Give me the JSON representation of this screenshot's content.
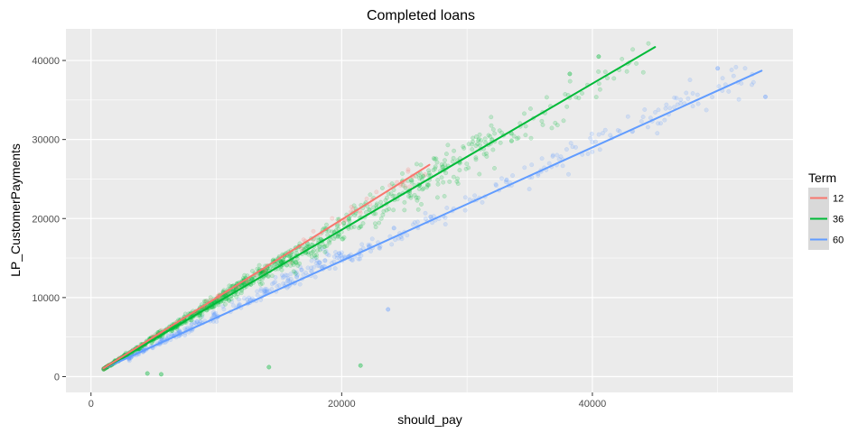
{
  "chart_data": {
    "type": "scatter",
    "title": "Completed loans",
    "xlabel": "should_pay",
    "ylabel": "LP_CustomerPayments",
    "xlim": [
      -2000,
      56000
    ],
    "ylim": [
      -2000,
      44000
    ],
    "x_ticks": [
      0,
      20000,
      40000
    ],
    "y_ticks": [
      0,
      10000,
      20000,
      30000,
      40000
    ],
    "x_tick_labels": [
      "0",
      "20000",
      "40000"
    ],
    "y_tick_labels": [
      "0",
      "10000",
      "20000",
      "30000",
      "40000"
    ],
    "grid": true,
    "panel_background": "#ebebeb",
    "grid_color": "#ffffff",
    "legend": {
      "title": "Term",
      "position": "right",
      "background": "#d9d9d9"
    },
    "series": [
      {
        "name": "12",
        "color": "#f8766d",
        "fit_line": [
          [
            1000,
            1050
          ],
          [
            27000,
            26800
          ]
        ],
        "point_clusters": [
          {
            "x": [
              1000,
              27000
            ],
            "slope": 0.99,
            "spread": 0.05,
            "count": 80
          }
        ]
      },
      {
        "name": "36",
        "color": "#00ba38",
        "fit_line": [
          [
            1000,
            1000
          ],
          [
            45000,
            41700
          ]
        ],
        "point_clusters": [
          {
            "x": [
              1000,
              16000
            ],
            "slope": 0.96,
            "spread": 0.07,
            "count": 700
          },
          {
            "x": [
              16000,
              32000
            ],
            "slope": 0.93,
            "spread": 0.09,
            "count": 300
          },
          {
            "x": [
              32000,
              45000
            ],
            "slope": 0.92,
            "spread": 0.06,
            "count": 60
          }
        ],
        "outliers": [
          [
            5600,
            300
          ],
          [
            14200,
            1200
          ],
          [
            21500,
            1400
          ],
          [
            38200,
            38300
          ],
          [
            40500,
            40500
          ],
          [
            4500,
            400
          ]
        ]
      },
      {
        "name": "60",
        "color": "#619cff",
        "fit_line": [
          [
            1000,
            1000
          ],
          [
            53500,
            38700
          ]
        ],
        "point_clusters": [
          {
            "x": [
              3000,
              20000
            ],
            "slope": 0.78,
            "spread": 0.08,
            "count": 250
          },
          {
            "x": [
              20000,
              54000
            ],
            "slope": 0.73,
            "spread": 0.05,
            "count": 180
          }
        ],
        "outliers": [
          [
            23700,
            8500
          ],
          [
            53800,
            35400
          ],
          [
            50000,
            39000
          ]
        ]
      }
    ]
  }
}
